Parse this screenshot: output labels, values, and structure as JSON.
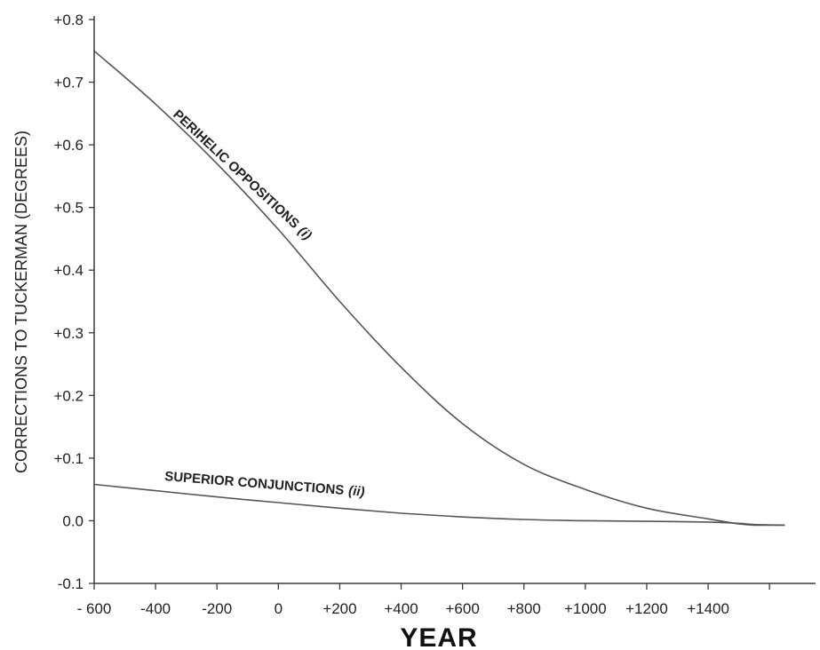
{
  "chart_data": {
    "type": "line",
    "title": "",
    "xlabel": "YEAR",
    "ylabel": "CORRECTIONS TO TUCKERMAN (DEGREES)",
    "xlim": [
      -600,
      1750
    ],
    "ylim": [
      -0.1,
      0.8
    ],
    "x_ticks": [
      -600,
      -400,
      -200,
      0,
      200,
      400,
      600,
      800,
      1000,
      1200,
      1400,
      1600
    ],
    "x_tick_labels": [
      "- 600",
      "-400",
      "-200",
      "0",
      "+200",
      "+400",
      "+600",
      "+800",
      "+1000",
      "+1200",
      "+1400",
      ""
    ],
    "y_ticks": [
      -0.1,
      0.0,
      0.1,
      0.2,
      0.3,
      0.4,
      0.5,
      0.6,
      0.7,
      0.8
    ],
    "y_tick_labels": [
      "-0.1",
      "0.0",
      "+0.1",
      "+0.2",
      "+0.3",
      "+0.4",
      "+0.5",
      "+0.6",
      "+0.7",
      "+0.8"
    ],
    "grid": false,
    "legend": "none",
    "series": [
      {
        "label": "PERIHELIC OPPOSITIONS",
        "label_suffix": "(i)",
        "x": [
          -600,
          -400,
          -200,
          0,
          200,
          400,
          600,
          800,
          1000,
          1200,
          1400,
          1500,
          1550,
          1650
        ],
        "y": [
          0.75,
          0.665,
          0.57,
          0.465,
          0.35,
          0.245,
          0.155,
          0.09,
          0.05,
          0.02,
          0.003,
          -0.005,
          -0.007,
          -0.007
        ]
      },
      {
        "label": "SUPERIOR CONJUNCTIONS",
        "label_suffix": "(ii)",
        "x": [
          -600,
          -400,
          -200,
          0,
          200,
          400,
          600,
          800,
          1000,
          1200,
          1400,
          1500,
          1550,
          1650
        ],
        "y": [
          0.058,
          0.048,
          0.038,
          0.029,
          0.02,
          0.012,
          0.006,
          0.002,
          0.0,
          -0.001,
          -0.002,
          -0.004,
          -0.006,
          -0.007
        ]
      }
    ]
  }
}
